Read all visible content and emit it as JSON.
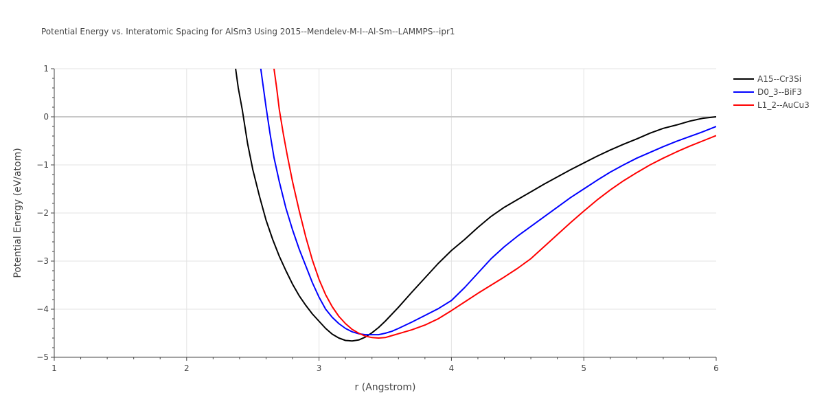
{
  "chart_data": {
    "type": "line",
    "title": "Potential Energy vs. Interatomic Spacing for AlSm3 Using 2015--Mendelev-M-I--Al-Sm--LAMMPS--ipr1",
    "xlabel": "r (Angstrom)",
    "ylabel": "Potential Energy (eV/atom)",
    "xlim": [
      1,
      6
    ],
    "ylim": [
      -5,
      1
    ],
    "xticks": [
      1,
      2,
      3,
      4,
      5,
      6
    ],
    "yticks": [
      1,
      0,
      -1,
      -2,
      -3,
      -4,
      -5
    ],
    "xtick_labels": [
      "1",
      "2",
      "3",
      "4",
      "5",
      "6"
    ],
    "ytick_labels": [
      "1",
      "0",
      "−1",
      "−2",
      "−3",
      "−4",
      "−5"
    ],
    "grid": true,
    "legend_position": "top-right",
    "series": [
      {
        "name": "A15--Cr3Si",
        "color": "#000000",
        "points": [
          [
            2.37,
            1.0
          ],
          [
            2.39,
            0.6
          ],
          [
            2.42,
            0.15
          ],
          [
            2.46,
            -0.55
          ],
          [
            2.5,
            -1.1
          ],
          [
            2.55,
            -1.65
          ],
          [
            2.6,
            -2.15
          ],
          [
            2.65,
            -2.55
          ],
          [
            2.7,
            -2.9
          ],
          [
            2.75,
            -3.2
          ],
          [
            2.8,
            -3.48
          ],
          [
            2.85,
            -3.72
          ],
          [
            2.9,
            -3.92
          ],
          [
            2.95,
            -4.1
          ],
          [
            3.0,
            -4.25
          ],
          [
            3.05,
            -4.4
          ],
          [
            3.1,
            -4.52
          ],
          [
            3.15,
            -4.6
          ],
          [
            3.2,
            -4.65
          ],
          [
            3.25,
            -4.66
          ],
          [
            3.3,
            -4.64
          ],
          [
            3.35,
            -4.58
          ],
          [
            3.4,
            -4.49
          ],
          [
            3.45,
            -4.38
          ],
          [
            3.5,
            -4.25
          ],
          [
            3.6,
            -3.96
          ],
          [
            3.7,
            -3.65
          ],
          [
            3.8,
            -3.35
          ],
          [
            3.9,
            -3.05
          ],
          [
            4.0,
            -2.78
          ],
          [
            4.1,
            -2.55
          ],
          [
            4.2,
            -2.3
          ],
          [
            4.3,
            -2.07
          ],
          [
            4.4,
            -1.88
          ],
          [
            4.5,
            -1.72
          ],
          [
            4.6,
            -1.56
          ],
          [
            4.7,
            -1.4
          ],
          [
            4.8,
            -1.25
          ],
          [
            4.9,
            -1.1
          ],
          [
            5.0,
            -0.96
          ],
          [
            5.1,
            -0.82
          ],
          [
            5.2,
            -0.69
          ],
          [
            5.3,
            -0.57
          ],
          [
            5.4,
            -0.46
          ],
          [
            5.5,
            -0.34
          ],
          [
            5.6,
            -0.24
          ],
          [
            5.7,
            -0.17
          ],
          [
            5.8,
            -0.09
          ],
          [
            5.9,
            -0.03
          ],
          [
            6.0,
            0.0
          ]
        ]
      },
      {
        "name": "D0_3--BiF3",
        "color": "#0000ff",
        "points": [
          [
            2.56,
            1.0
          ],
          [
            2.58,
            0.6
          ],
          [
            2.6,
            0.2
          ],
          [
            2.63,
            -0.35
          ],
          [
            2.66,
            -0.85
          ],
          [
            2.7,
            -1.35
          ],
          [
            2.75,
            -1.9
          ],
          [
            2.8,
            -2.35
          ],
          [
            2.85,
            -2.75
          ],
          [
            2.9,
            -3.1
          ],
          [
            2.95,
            -3.45
          ],
          [
            3.0,
            -3.75
          ],
          [
            3.05,
            -4.0
          ],
          [
            3.1,
            -4.17
          ],
          [
            3.15,
            -4.3
          ],
          [
            3.2,
            -4.4
          ],
          [
            3.25,
            -4.47
          ],
          [
            3.3,
            -4.51
          ],
          [
            3.35,
            -4.53
          ],
          [
            3.4,
            -4.53
          ],
          [
            3.45,
            -4.53
          ],
          [
            3.5,
            -4.5
          ],
          [
            3.55,
            -4.46
          ],
          [
            3.6,
            -4.4
          ],
          [
            3.7,
            -4.27
          ],
          [
            3.8,
            -4.13
          ],
          [
            3.9,
            -3.99
          ],
          [
            4.0,
            -3.82
          ],
          [
            4.1,
            -3.55
          ],
          [
            4.2,
            -3.25
          ],
          [
            4.3,
            -2.95
          ],
          [
            4.4,
            -2.7
          ],
          [
            4.5,
            -2.48
          ],
          [
            4.6,
            -2.28
          ],
          [
            4.7,
            -2.08
          ],
          [
            4.8,
            -1.88
          ],
          [
            4.9,
            -1.68
          ],
          [
            5.0,
            -1.5
          ],
          [
            5.1,
            -1.32
          ],
          [
            5.2,
            -1.15
          ],
          [
            5.3,
            -1.0
          ],
          [
            5.4,
            -0.86
          ],
          [
            5.5,
            -0.74
          ],
          [
            5.6,
            -0.62
          ],
          [
            5.7,
            -0.51
          ],
          [
            5.8,
            -0.41
          ],
          [
            5.9,
            -0.31
          ],
          [
            6.0,
            -0.2
          ]
        ]
      },
      {
        "name": "L1_2--AuCu3",
        "color": "#ff0000",
        "points": [
          [
            2.66,
            1.0
          ],
          [
            2.68,
            0.6
          ],
          [
            2.7,
            0.15
          ],
          [
            2.73,
            -0.35
          ],
          [
            2.76,
            -0.8
          ],
          [
            2.8,
            -1.35
          ],
          [
            2.85,
            -1.95
          ],
          [
            2.9,
            -2.5
          ],
          [
            2.95,
            -2.98
          ],
          [
            3.0,
            -3.38
          ],
          [
            3.05,
            -3.7
          ],
          [
            3.1,
            -3.95
          ],
          [
            3.15,
            -4.15
          ],
          [
            3.2,
            -4.3
          ],
          [
            3.25,
            -4.42
          ],
          [
            3.3,
            -4.5
          ],
          [
            3.35,
            -4.56
          ],
          [
            3.4,
            -4.59
          ],
          [
            3.45,
            -4.6
          ],
          [
            3.5,
            -4.59
          ],
          [
            3.55,
            -4.55
          ],
          [
            3.6,
            -4.51
          ],
          [
            3.7,
            -4.43
          ],
          [
            3.8,
            -4.33
          ],
          [
            3.9,
            -4.2
          ],
          [
            4.0,
            -4.03
          ],
          [
            4.1,
            -3.85
          ],
          [
            4.2,
            -3.67
          ],
          [
            4.3,
            -3.5
          ],
          [
            4.4,
            -3.33
          ],
          [
            4.5,
            -3.15
          ],
          [
            4.6,
            -2.95
          ],
          [
            4.7,
            -2.7
          ],
          [
            4.8,
            -2.45
          ],
          [
            4.9,
            -2.2
          ],
          [
            5.0,
            -1.96
          ],
          [
            5.1,
            -1.73
          ],
          [
            5.2,
            -1.52
          ],
          [
            5.3,
            -1.33
          ],
          [
            5.4,
            -1.16
          ],
          [
            5.5,
            -1.0
          ],
          [
            5.6,
            -0.86
          ],
          [
            5.7,
            -0.73
          ],
          [
            5.8,
            -0.61
          ],
          [
            5.9,
            -0.5
          ],
          [
            6.0,
            -0.39
          ]
        ]
      }
    ]
  }
}
